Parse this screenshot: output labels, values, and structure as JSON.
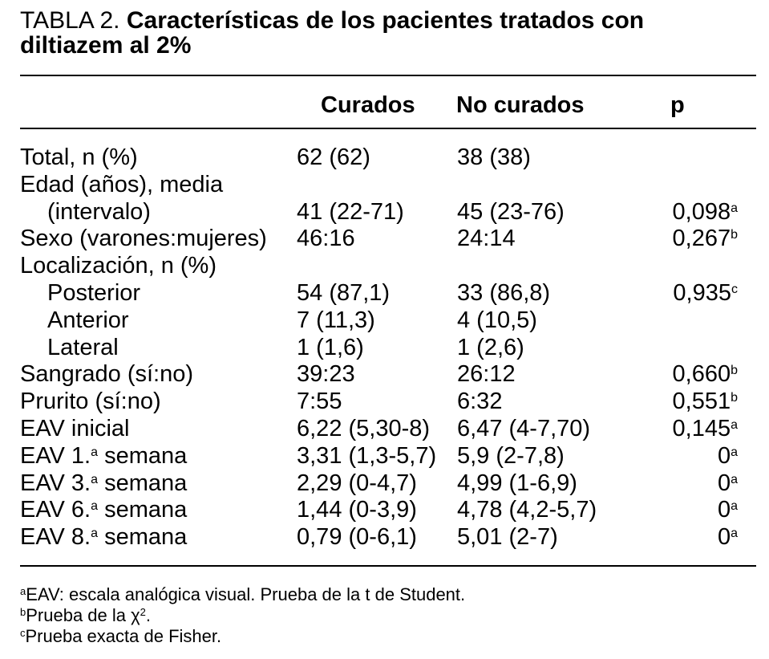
{
  "title": {
    "label": "TABLA 2.",
    "bold_line1": "Características de los pacientes tratados con",
    "bold_line2": "diltiazem al 2%"
  },
  "header": {
    "col1": "Curados",
    "col2": "No curados",
    "col3": "p"
  },
  "rows": [
    {
      "label": "Total, n (%)",
      "c1": "62 (62)",
      "c2": "38 (38)",
      "p": "",
      "sup": ""
    },
    {
      "label": "Edad (años), media",
      "c1": "",
      "c2": "",
      "p": "",
      "sup": ""
    },
    {
      "label": "(intervalo)",
      "c1": "41 (22-71)",
      "c2": "45 (23-76)",
      "p": "0,098",
      "sup": "a"
    },
    {
      "label": "Sexo (varones:mujeres)",
      "c1": "46:16",
      "c2": "24:14",
      "p": "0,267",
      "sup": "b"
    },
    {
      "label": "Localización, n (%)",
      "c1": "",
      "c2": "",
      "p": "",
      "sup": ""
    },
    {
      "label": "Posterior",
      "c1": "54 (87,1)",
      "c2": "33 (86,8)",
      "p": "0,935",
      "sup": "c"
    },
    {
      "label": "Anterior",
      "c1": "7 (11,3)",
      "c2": "4 (10,5)",
      "p": "",
      "sup": ""
    },
    {
      "label": "Lateral",
      "c1": "1 (1,6)",
      "c2": "1 (2,6)",
      "p": "",
      "sup": ""
    },
    {
      "label": "Sangrado (sí:no)",
      "c1": "39:23",
      "c2": "26:12",
      "p": "0,660",
      "sup": "b"
    },
    {
      "label": "Prurito (sí:no)",
      "c1": "7:55",
      "c2": "6:32",
      "p": "0,551",
      "sup": "b"
    },
    {
      "label": "EAV inicial",
      "c1": "6,22 (5,30-8)",
      "c2": "6,47 (4-7,70)",
      "p": "0,145",
      "sup": "a"
    },
    {
      "label_pre": "EAV 1.",
      "label_sup": "a",
      "label_post": " semana",
      "c1": "3,31 (1,3-5,7)",
      "c2": "5,9 (2-7,8)",
      "p": "0",
      "sup": "a"
    },
    {
      "label_pre": "EAV 3.",
      "label_sup": "a",
      "label_post": " semana",
      "c1": "2,29 (0-4,7)",
      "c2": "4,99 (1-6,9)",
      "p": "0",
      "sup": "a"
    },
    {
      "label_pre": "EAV 6.",
      "label_sup": "a",
      "label_post": " semana",
      "c1": "1,44 (0-3,9)",
      "c2": "4,78 (4,2-5,7)",
      "p": "0",
      "sup": "a"
    },
    {
      "label_pre": "EAV 8.",
      "label_sup": "a",
      "label_post": " semana",
      "c1": "0,79 (0-6,1)",
      "c2": "5,01 (2-7)",
      "p": "0",
      "sup": "a"
    }
  ],
  "notes": [
    {
      "mark": "a",
      "text": "EAV: escala analógica visual. Prueba de la t de Student."
    },
    {
      "mark": "b",
      "text": "Prueba de la χ",
      "sup2": "2",
      "tail": "."
    },
    {
      "mark": "c",
      "text": "Prueba exacta de Fisher."
    }
  ]
}
